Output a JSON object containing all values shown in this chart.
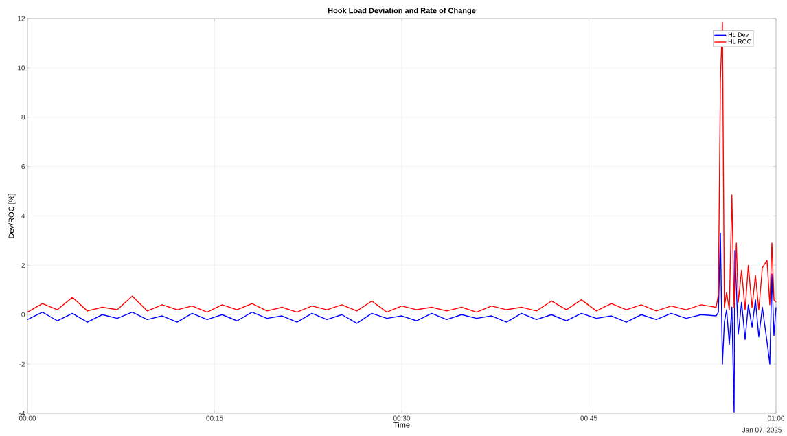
{
  "chart_data": {
    "type": "line",
    "title": "Hook Load Deviation and Rate of Change",
    "xlabel": "Time",
    "ylabel": "Dev/ROC [%]",
    "annotations": [
      "Jan 07, 2025"
    ],
    "xlim": [
      0,
      1
    ],
    "xticks": [
      {
        "value": 0,
        "label": "00:00"
      },
      {
        "value": 0.25,
        "label": "00:15"
      },
      {
        "value": 0.5,
        "label": "00:30"
      },
      {
        "value": 0.75,
        "label": "00:45"
      },
      {
        "value": 1,
        "label": "01:00"
      }
    ],
    "ylim": [
      -4,
      12
    ],
    "yticks": [
      -4,
      -2,
      0,
      2,
      4,
      6,
      8,
      10,
      12
    ],
    "grid": true,
    "legend": "top right",
    "series": [
      {
        "name": "HL Dev",
        "color": "#0000ff",
        "x": [
          0,
          0.02,
          0.04,
          0.06,
          0.08,
          0.1,
          0.12,
          0.14,
          0.16,
          0.18,
          0.2,
          0.22,
          0.24,
          0.26,
          0.28,
          0.3,
          0.32,
          0.34,
          0.36,
          0.38,
          0.4,
          0.42,
          0.44,
          0.46,
          0.48,
          0.5,
          0.52,
          0.54,
          0.56,
          0.58,
          0.6,
          0.62,
          0.64,
          0.66,
          0.68,
          0.7,
          0.72,
          0.74,
          0.76,
          0.78,
          0.8,
          0.82,
          0.84,
          0.86,
          0.88,
          0.9,
          0.92,
          0.923,
          0.9257,
          0.9284,
          0.931,
          0.934,
          0.9376,
          0.941,
          0.944,
          0.945,
          0.9495,
          0.954,
          0.9587,
          0.963,
          0.968,
          0.9725,
          0.977,
          0.9817,
          0.988,
          0.9917,
          0.9945,
          0.9972,
          1.0
        ],
        "values": [
          -0.2,
          0.1,
          -0.25,
          0.05,
          -0.3,
          0,
          -0.15,
          0.1,
          -0.2,
          -0.05,
          -0.3,
          0.05,
          -0.2,
          0,
          -0.25,
          0.1,
          -0.15,
          -0.05,
          -0.3,
          0.05,
          -0.2,
          0,
          -0.35,
          0.05,
          -0.15,
          -0.05,
          -0.25,
          0.05,
          -0.2,
          0,
          -0.15,
          -0.05,
          -0.3,
          0.05,
          -0.2,
          0,
          -0.25,
          0.05,
          -0.15,
          -0.05,
          -0.3,
          0,
          -0.2,
          0.05,
          -0.15,
          0,
          -0.05,
          0.1,
          3.3,
          -2.0,
          -0.3,
          0.2,
          -1.2,
          0.3,
          -3.95,
          2.6,
          -0.8,
          0.5,
          -1.0,
          0.4,
          -0.5,
          0.6,
          -0.9,
          0.3,
          -1.1,
          -2.0,
          1.65,
          -0.85,
          0.3
        ]
      },
      {
        "name": "HL ROC",
        "color": "#ff0000",
        "x": [
          0,
          0.02,
          0.04,
          0.06,
          0.08,
          0.1,
          0.12,
          0.14,
          0.16,
          0.18,
          0.2,
          0.22,
          0.24,
          0.26,
          0.28,
          0.3,
          0.32,
          0.34,
          0.36,
          0.38,
          0.4,
          0.42,
          0.44,
          0.46,
          0.48,
          0.5,
          0.52,
          0.54,
          0.56,
          0.58,
          0.6,
          0.62,
          0.64,
          0.66,
          0.68,
          0.7,
          0.72,
          0.74,
          0.76,
          0.78,
          0.8,
          0.82,
          0.84,
          0.86,
          0.88,
          0.9,
          0.92,
          0.923,
          0.9257,
          0.9284,
          0.931,
          0.934,
          0.9376,
          0.941,
          0.944,
          0.947,
          0.9495,
          0.954,
          0.9587,
          0.963,
          0.968,
          0.9725,
          0.977,
          0.9817,
          0.988,
          0.9917,
          0.9945,
          0.9972,
          1.0
        ],
        "values": [
          0.1,
          0.45,
          0.2,
          0.7,
          0.15,
          0.3,
          0.2,
          0.75,
          0.15,
          0.4,
          0.2,
          0.35,
          0.1,
          0.4,
          0.2,
          0.45,
          0.15,
          0.3,
          0.1,
          0.35,
          0.2,
          0.4,
          0.15,
          0.55,
          0.1,
          0.35,
          0.2,
          0.3,
          0.15,
          0.3,
          0.1,
          0.35,
          0.2,
          0.3,
          0.15,
          0.55,
          0.2,
          0.6,
          0.15,
          0.45,
          0.2,
          0.4,
          0.15,
          0.35,
          0.2,
          0.4,
          0.3,
          0.8,
          9.5,
          11.85,
          0.3,
          0.9,
          0.2,
          4.85,
          0.3,
          2.9,
          0.5,
          1.8,
          0.2,
          2.0,
          0.3,
          1.6,
          0.2,
          1.9,
          2.2,
          0.4,
          2.9,
          0.6,
          0.5
        ]
      }
    ]
  }
}
